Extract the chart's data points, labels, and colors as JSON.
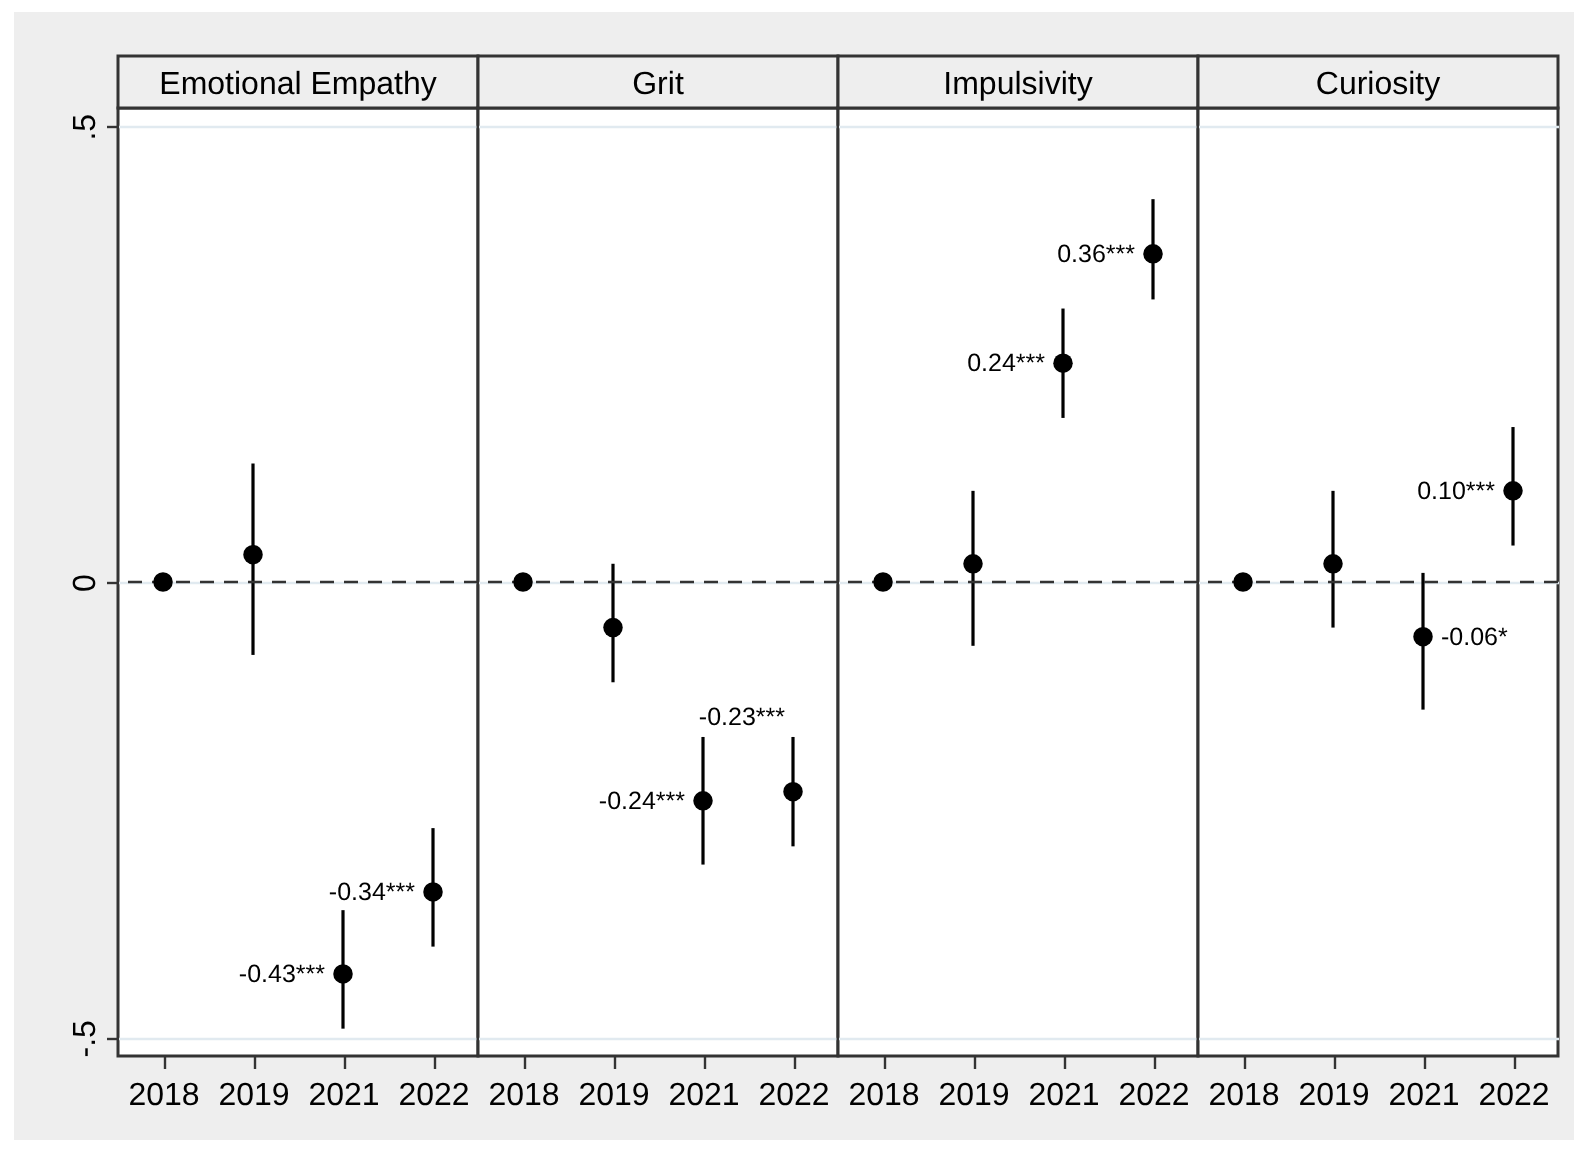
{
  "chart_data": [
    {
      "type": "scatter",
      "title": "Emotional Empathy",
      "categories": [
        "2018",
        "2019",
        "2021",
        "2022"
      ],
      "values": [
        0,
        0.03,
        -0.43,
        -0.34
      ],
      "errors": [
        null,
        [
          -0.08,
          0.13
        ],
        [
          -0.49,
          -0.36
        ],
        [
          -0.4,
          -0.27
        ]
      ],
      "value_labels": [
        null,
        null,
        "-0.43***",
        "-0.34***"
      ],
      "color": "#000000",
      "marker": "circle",
      "ylim": [
        -0.52,
        0.52
      ],
      "yticks": [
        {
          "value": -0.5,
          "label": "-.5"
        },
        0,
        {
          "value": 0.5,
          "label": ".5"
        }
      ],
      "grid": "y",
      "ref_lines": [
        {
          "axis": "y",
          "value": 0,
          "line_style": "dashed"
        }
      ]
    },
    {
      "type": "scatter",
      "title": "Grit",
      "categories": [
        "2018",
        "2019",
        "2021",
        "2022"
      ],
      "values": [
        0,
        -0.05,
        -0.24,
        -0.23
      ],
      "errors": [
        null,
        [
          -0.11,
          0.02
        ],
        [
          -0.31,
          -0.17
        ],
        [
          -0.29,
          -0.17
        ]
      ],
      "value_labels": [
        null,
        null,
        "-0.24***",
        "-0.23***"
      ],
      "color": "#000000",
      "marker": "circle",
      "ylim": [
        -0.52,
        0.52
      ],
      "yticks": [
        -0.5,
        0,
        0.5
      ],
      "grid": "y",
      "tick_labels": "x",
      "ref_lines": [
        {
          "axis": "y",
          "value": 0,
          "line_style": "dashed"
        }
      ]
    },
    {
      "type": "scatter",
      "title": "Impulsivity",
      "categories": [
        "2018",
        "2019",
        "2021",
        "2022"
      ],
      "values": [
        0,
        0.02,
        0.24,
        0.36
      ],
      "errors": [
        null,
        [
          -0.07,
          0.1
        ],
        [
          0.18,
          0.3
        ],
        [
          0.31,
          0.42
        ]
      ],
      "value_labels": [
        null,
        null,
        "0.24***",
        "0.36***"
      ],
      "color": "#000000",
      "marker": "circle",
      "ylim": [
        -0.52,
        0.52
      ],
      "yticks": [
        -0.5,
        0,
        0.5
      ],
      "grid": "y",
      "tick_labels": "x",
      "ref_lines": [
        {
          "axis": "y",
          "value": 0,
          "line_style": "dashed"
        }
      ]
    },
    {
      "type": "scatter",
      "title": "Curiosity",
      "categories": [
        "2018",
        "2019",
        "2021",
        "2022"
      ],
      "values": [
        0,
        0.02,
        -0.06,
        0.1
      ],
      "errors": [
        null,
        [
          -0.05,
          0.1
        ],
        [
          -0.14,
          0.01
        ],
        [
          0.04,
          0.17
        ]
      ],
      "value_labels": [
        null,
        null,
        "-0.06*",
        "0.10***"
      ],
      "color": "#000000",
      "marker": "circle",
      "ylim": [
        -0.52,
        0.52
      ],
      "yticks": [
        -0.5,
        0,
        0.5
      ],
      "grid": "y",
      "tick_labels": "x",
      "ref_lines": [
        {
          "axis": "y",
          "value": 0,
          "line_style": "dashed"
        }
      ]
    }
  ]
}
